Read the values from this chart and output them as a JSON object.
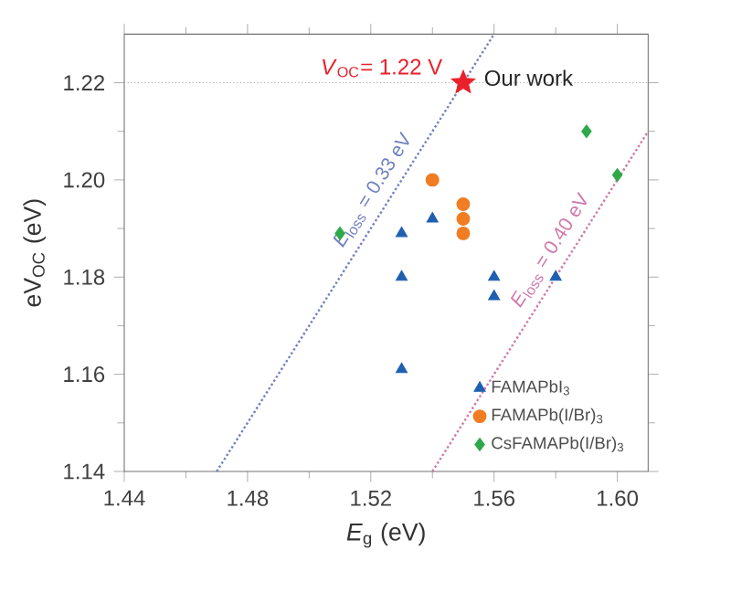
{
  "chart_data": {
    "type": "scatter",
    "xlabel": "*E*$_{g}$ (eV)",
    "ylabel": "eV$_{OC}$ (eV)",
    "xlim": [
      1.44,
      1.61
    ],
    "ylim": [
      1.14,
      1.23
    ],
    "xticks": [
      1.44,
      1.48,
      1.52,
      1.56,
      {
        "value": 1.6,
        "label": "1.60"
      }
    ],
    "yticks": [
      1.14,
      1.16,
      1.18,
      {
        "value": 1.2,
        "label": "1.20"
      },
      1.22
    ],
    "legend": "bottom right",
    "series": [
      {
        "name": "FAMAPbI$_{3}$",
        "color": "#1f5fb0",
        "marker": "triangle",
        "x": [
          1.53,
          1.54,
          1.53,
          1.56,
          1.58,
          1.56,
          1.53
        ],
        "values": [
          1.189,
          1.192,
          1.18,
          1.18,
          1.18,
          1.176,
          1.161
        ]
      },
      {
        "name": "FAMAPb(I/Br)$_{3}$",
        "color": "#f07d22",
        "marker": "circle",
        "x": [
          1.54,
          1.55,
          1.55,
          1.55
        ],
        "values": [
          1.2,
          1.195,
          1.192,
          1.189
        ]
      },
      {
        "name": "CsFAMAPb(I/Br)$_{3}$",
        "color": "#2ea84a",
        "marker": "diamond",
        "x": [
          1.51,
          1.59,
          1.6
        ],
        "values": [
          1.189,
          1.21,
          1.201
        ]
      },
      {
        "name": "Our work",
        "color": "#e8212a",
        "marker": "star",
        "x": [
          1.55
        ],
        "values": [
          1.22
        ]
      },
      {
        "type": "line",
        "name": "*E*$_{loss}$ = 0.33 eV",
        "color": "#7080c0",
        "line_style": "dotted",
        "marker": "none",
        "x": [
          1.47,
          1.56
        ],
        "values": [
          1.14,
          1.23
        ]
      },
      {
        "type": "line",
        "name": "*E*$_{loss}$ = 0.40 eV",
        "color": "#d078a8",
        "line_style": "dotted",
        "marker": "none",
        "x": [
          1.54,
          1.61
        ],
        "values": [
          1.14,
          1.21
        ]
      }
    ],
    "ref_lines": [
      {
        "axis": "y",
        "value": 1.22,
        "color": "#a0a0a0",
        "line_style": "dotted"
      }
    ],
    "annotations": [
      {
        "text": "*V*$_{OC}$= 1.22 V",
        "x": 1.55,
        "y": 1.22
      }
    ]
  }
}
